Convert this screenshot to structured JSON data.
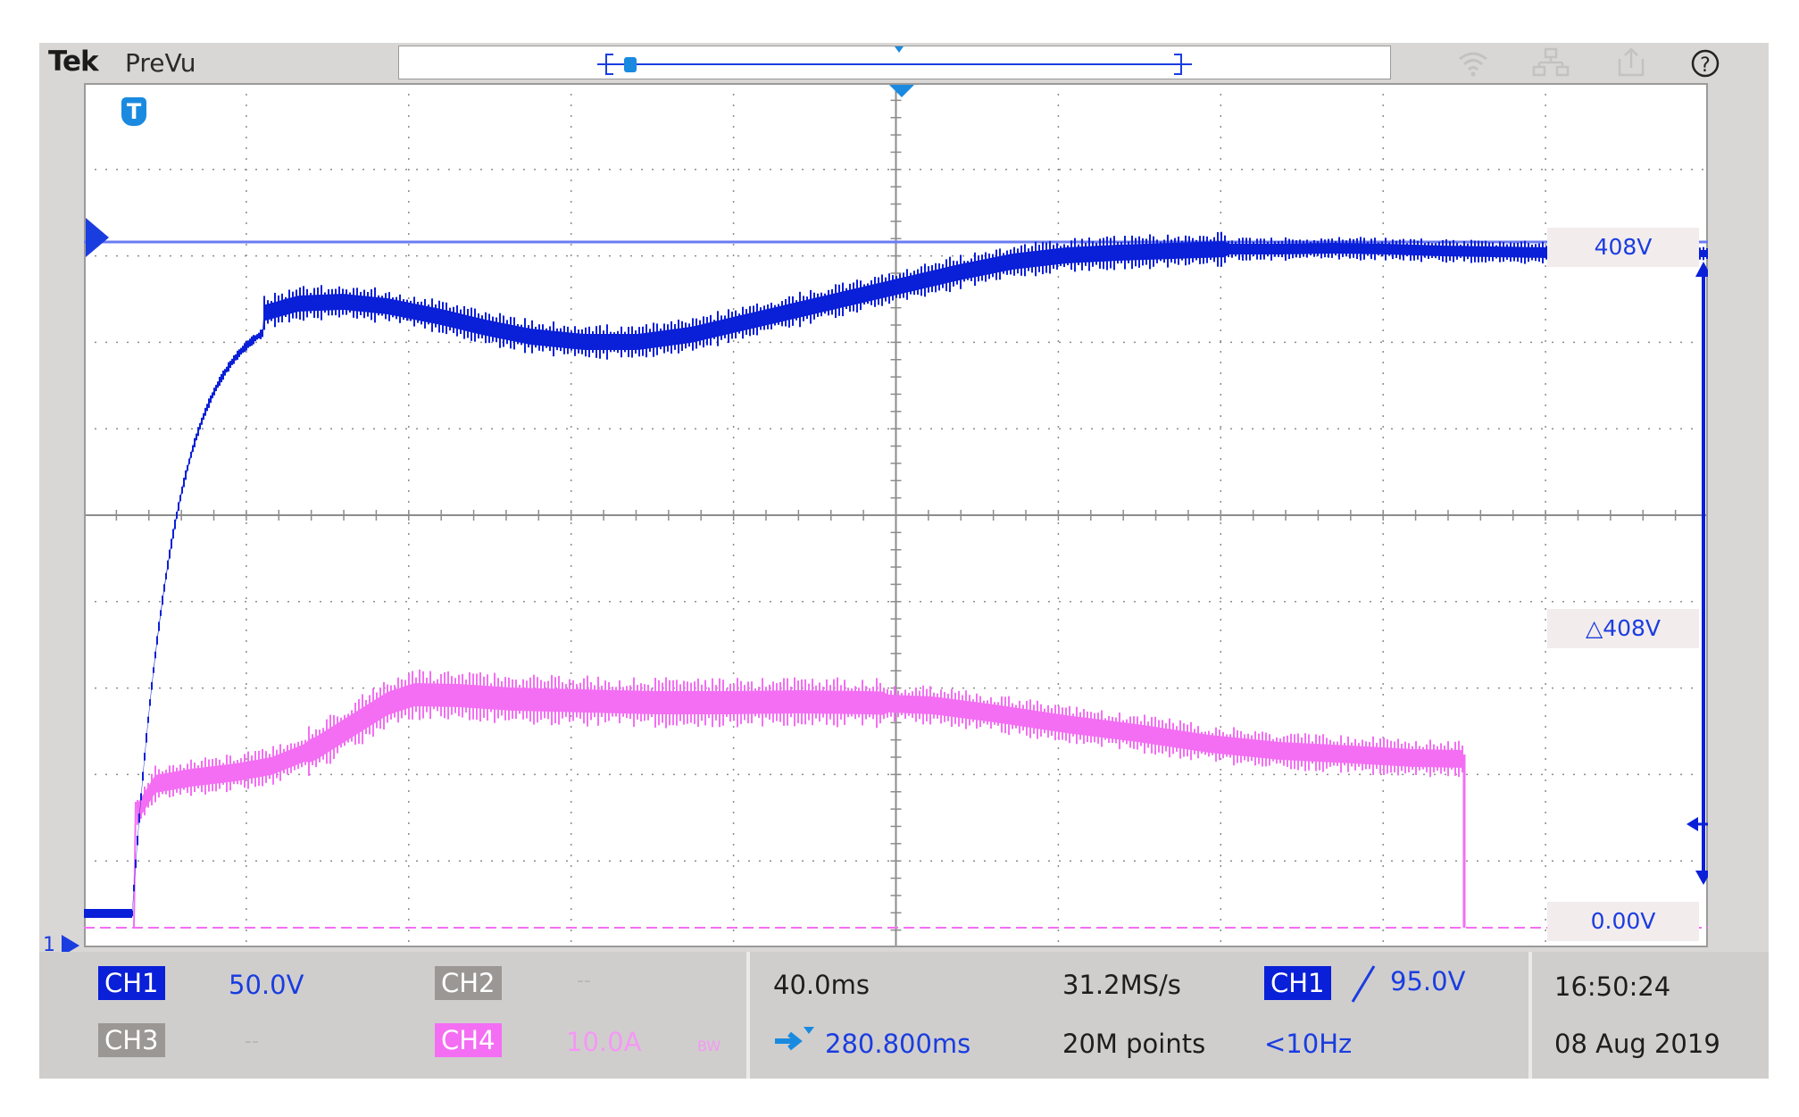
{
  "brand": "Tek",
  "mode": "PreVu",
  "colors": {
    "ch1": "#0a1fd8",
    "ch4": "#f46ef4",
    "grid": "#8c8c8c",
    "bezel": "#d9d7d6"
  },
  "icons": [
    "wifi-icon",
    "network-icon",
    "export-icon",
    "help-icon"
  ],
  "help_glyph": "?",
  "grid": {
    "divisions_x": 10,
    "divisions_y": 10
  },
  "trigger_badge": "T",
  "channel_marker_label": "1",
  "cursor_readouts": {
    "upper": "408V",
    "delta": "△408V",
    "lower": "0.00V"
  },
  "channels": {
    "ch1": {
      "label": "CH1",
      "scale": "50.0V"
    },
    "ch2": {
      "label": "CH2",
      "scale": "--"
    },
    "ch3": {
      "label": "CH3",
      "scale": "--"
    },
    "ch4": {
      "label": "CH4",
      "scale": "10.0A",
      "bw": "BW"
    }
  },
  "timebase": {
    "horizontal_scale": "40.0ms",
    "sample_rate": "31.2MS/s",
    "position": "280.800ms",
    "record_length": "20M points"
  },
  "trigger": {
    "source": "CH1",
    "slope_icon": "rising-edge-icon",
    "level": "95.0V",
    "frequency": "<10Hz"
  },
  "clock": {
    "time": "16:50:24",
    "date": "08 Aug 2019"
  }
}
